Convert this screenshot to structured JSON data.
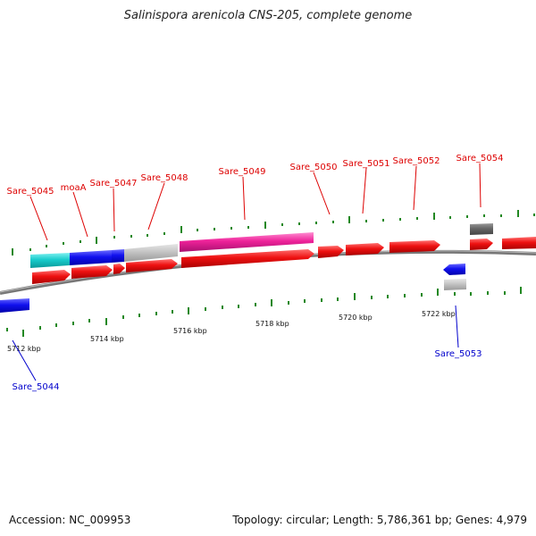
{
  "title": "Salinispora arenicola CNS-205, complete genome",
  "footer": {
    "accession": "Accession: NC_009953",
    "summary": "Topology: circular; Length: 5,786,361 bp; Genes: 4,979"
  },
  "colors": {
    "forward_label": "#dd0000",
    "reverse_label": "#0000cc",
    "cds_red": "#ee1111",
    "backbone": "#888888",
    "tick": "#228822"
  },
  "scale_labels": [
    "5712 kbp",
    "5714 kbp",
    "5716 kbp",
    "5718 kbp",
    "5720 kbp",
    "5722 kbp"
  ],
  "gene_labels": [
    {
      "text": "Sare_5045",
      "strand": "forward"
    },
    {
      "text": "moaA",
      "strand": "forward"
    },
    {
      "text": "Sare_5047",
      "strand": "forward"
    },
    {
      "text": "Sare_5048",
      "strand": "forward"
    },
    {
      "text": "Sare_5049",
      "strand": "forward"
    },
    {
      "text": "Sare_5050",
      "strand": "forward"
    },
    {
      "text": "Sare_5051",
      "strand": "forward"
    },
    {
      "text": "Sare_5052",
      "strand": "forward"
    },
    {
      "text": "Sare_5054",
      "strand": "forward"
    },
    {
      "text": "Sare_5053",
      "strand": "reverse"
    },
    {
      "text": "Sare_5044",
      "strand": "reverse"
    }
  ]
}
